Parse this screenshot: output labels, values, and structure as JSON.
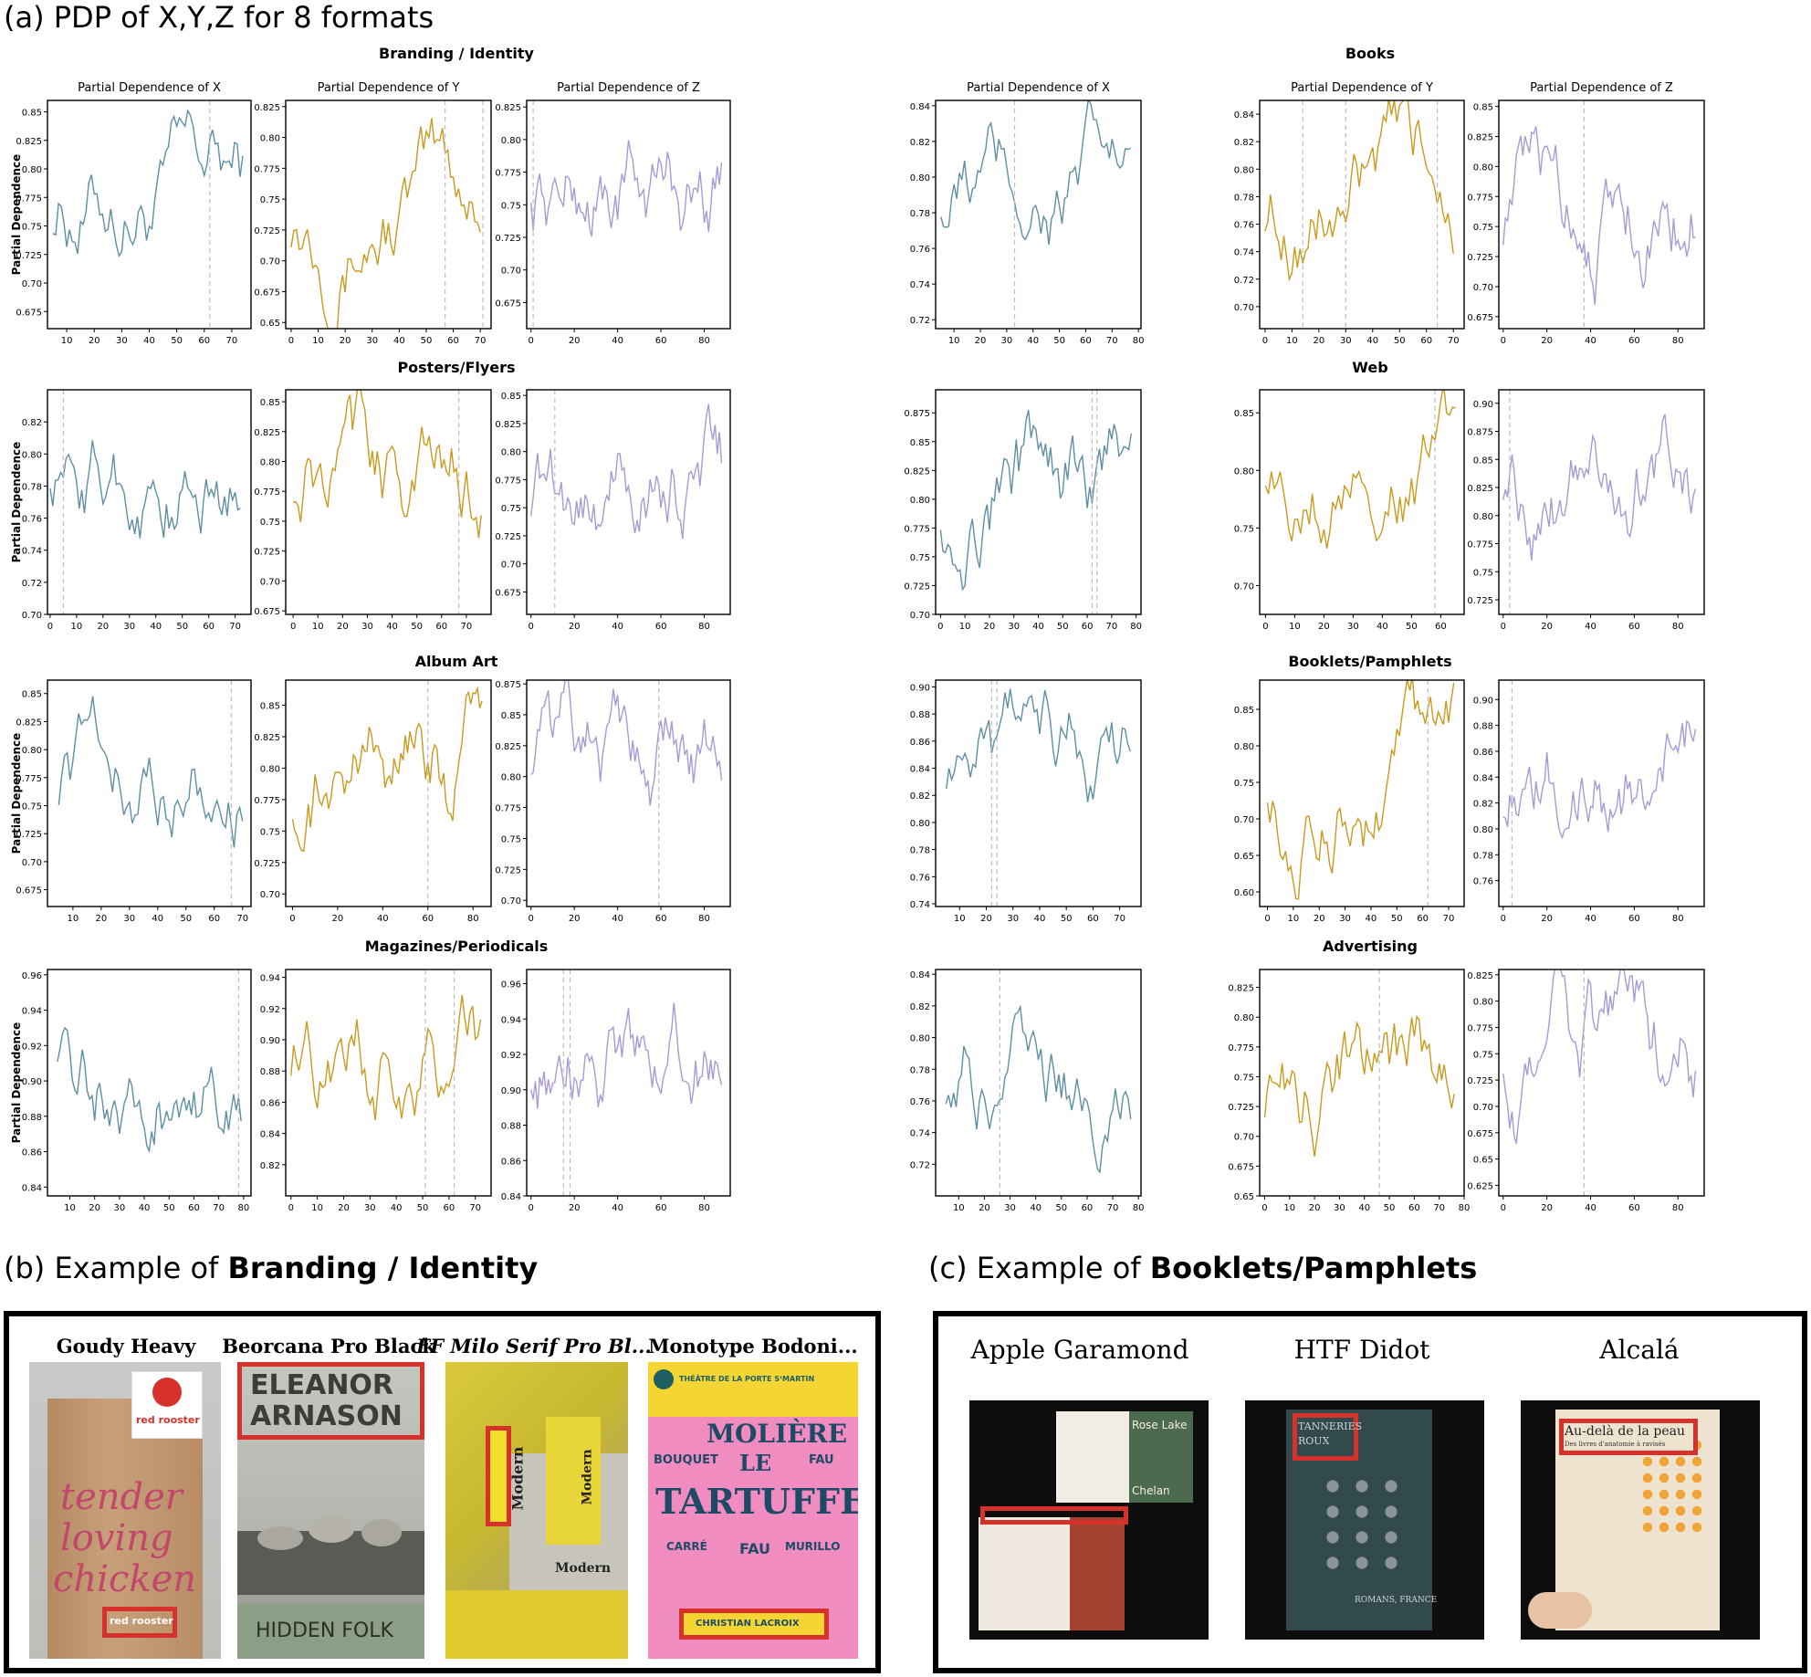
{
  "section_a": {
    "prefix": "(a) PDP of X,Y,Z for 8 formats"
  },
  "section_b": {
    "prefix": "(b) Example of ",
    "bold": "Branding / Identity"
  },
  "section_c": {
    "prefix": "(c) Example of ",
    "bold": "Booklets/Pamphlets"
  },
  "colors": {
    "x_series": "#5e8fa3",
    "y_series": "#c89a1e",
    "z_series": "#a79ad6",
    "highlight": "#d6312a"
  },
  "chart_data": [
    {
      "group": "Branding / Identity",
      "row": 0,
      "block": 0,
      "title": "Partial Dependence of X",
      "ylabel": "Partial Dependence",
      "type": "line",
      "series_color": "x",
      "xlim": [
        3,
        77
      ],
      "ylim": [
        0.66,
        0.86
      ],
      "xticks": [
        10,
        20,
        30,
        40,
        50,
        60,
        70
      ],
      "yticks": [
        0.675,
        0.7,
        0.725,
        0.75,
        0.775,
        0.8,
        0.825,
        0.85
      ],
      "vlines": [
        62
      ]
    },
    {
      "row": 0,
      "block": 0,
      "title": "Partial Dependence of Y",
      "type": "line",
      "series_color": "y",
      "xlim": [
        -2,
        74
      ],
      "ylim": [
        0.645,
        0.83
      ],
      "xticks": [
        0,
        10,
        20,
        30,
        40,
        50,
        60,
        70
      ],
      "yticks": [
        0.65,
        0.675,
        0.7,
        0.725,
        0.75,
        0.775,
        0.8,
        0.825
      ],
      "vlines": [
        57,
        71
      ]
    },
    {
      "row": 0,
      "block": 0,
      "title": "Partial Dependence of Z",
      "type": "line",
      "series_color": "z",
      "xlim": [
        -2,
        92
      ],
      "ylim": [
        0.655,
        0.83
      ],
      "xticks": [
        0,
        20,
        40,
        60,
        80
      ],
      "yticks": [
        0.675,
        0.7,
        0.725,
        0.75,
        0.775,
        0.8,
        0.825
      ],
      "vlines": [
        1
      ]
    },
    {
      "group": "Books",
      "row": 0,
      "block": 1,
      "title": "Partial Dependence of X",
      "type": "line",
      "series_color": "x",
      "xlim": [
        3,
        81
      ],
      "ylim": [
        0.715,
        0.843
      ],
      "xticks": [
        10,
        20,
        30,
        40,
        50,
        60,
        70,
        80
      ],
      "yticks": [
        0.72,
        0.74,
        0.76,
        0.78,
        0.8,
        0.82,
        0.84
      ],
      "vlines": [
        33
      ]
    },
    {
      "row": 0,
      "block": 1,
      "title": "Partial Dependence of Y",
      "type": "line",
      "series_color": "y",
      "xlim": [
        -2,
        74
      ],
      "ylim": [
        0.684,
        0.85
      ],
      "xticks": [
        0,
        10,
        20,
        30,
        40,
        50,
        60,
        70
      ],
      "yticks": [
        0.7,
        0.72,
        0.74,
        0.76,
        0.78,
        0.8,
        0.82,
        0.84
      ],
      "vlines": [
        14,
        30,
        64
      ]
    },
    {
      "row": 0,
      "block": 1,
      "title": "Partial Dependence of Z",
      "type": "line",
      "series_color": "z",
      "xlim": [
        -2,
        92
      ],
      "ylim": [
        0.665,
        0.855
      ],
      "xticks": [
        0,
        20,
        40,
        60,
        80
      ],
      "yticks": [
        0.675,
        0.7,
        0.725,
        0.75,
        0.775,
        0.8,
        0.825,
        0.85
      ],
      "vlines": [
        37
      ]
    },
    {
      "group": "Posters/Flyers",
      "row": 1,
      "block": 0,
      "ylabel": "Partial Dependence",
      "type": "line",
      "series_color": "x",
      "xlim": [
        -1,
        76
      ],
      "ylim": [
        0.7,
        0.84
      ],
      "xticks": [
        0,
        10,
        20,
        30,
        40,
        50,
        60,
        70
      ],
      "yticks": [
        0.7,
        0.72,
        0.74,
        0.76,
        0.78,
        0.8,
        0.82
      ],
      "vlines": [
        5
      ]
    },
    {
      "row": 1,
      "block": 0,
      "type": "line",
      "series_color": "y",
      "xlim": [
        -3,
        80
      ],
      "ylim": [
        0.672,
        0.86
      ],
      "xticks": [
        0,
        10,
        20,
        30,
        40,
        50,
        60,
        70
      ],
      "yticks": [
        0.675,
        0.7,
        0.725,
        0.75,
        0.775,
        0.8,
        0.825,
        0.85
      ],
      "vlines": [
        67
      ]
    },
    {
      "row": 1,
      "block": 0,
      "type": "line",
      "series_color": "z",
      "xlim": [
        -2,
        92
      ],
      "ylim": [
        0.655,
        0.855
      ],
      "xticks": [
        0,
        20,
        40,
        60,
        80
      ],
      "yticks": [
        0.675,
        0.7,
        0.725,
        0.75,
        0.775,
        0.8,
        0.825,
        0.85
      ],
      "vlines": [
        11
      ]
    },
    {
      "group": "Web",
      "row": 1,
      "block": 1,
      "type": "line",
      "series_color": "x",
      "xlim": [
        -2,
        82
      ],
      "ylim": [
        0.7,
        0.895
      ],
      "xticks": [
        0,
        10,
        20,
        30,
        40,
        50,
        60,
        70,
        80
      ],
      "yticks": [
        0.7,
        0.725,
        0.75,
        0.775,
        0.8,
        0.825,
        0.85,
        0.875
      ],
      "vlines": [
        62,
        64
      ]
    },
    {
      "row": 1,
      "block": 1,
      "type": "line",
      "series_color": "y",
      "xlim": [
        -2,
        68
      ],
      "ylim": [
        0.675,
        0.87
      ],
      "xticks": [
        0,
        10,
        20,
        30,
        40,
        50,
        60
      ],
      "yticks": [
        0.7,
        0.75,
        0.8,
        0.85
      ],
      "vlines": [
        58
      ]
    },
    {
      "row": 1,
      "block": 1,
      "type": "line",
      "series_color": "z",
      "xlim": [
        -2,
        92
      ],
      "ylim": [
        0.712,
        0.912
      ],
      "xticks": [
        0,
        20,
        40,
        60,
        80
      ],
      "yticks": [
        0.725,
        0.75,
        0.775,
        0.8,
        0.825,
        0.85,
        0.875,
        0.9
      ],
      "vlines": [
        3
      ]
    },
    {
      "group": "Album Art",
      "row": 2,
      "block": 0,
      "ylabel": "Partial Dependence",
      "type": "line",
      "series_color": "x",
      "xlim": [
        1,
        73
      ],
      "ylim": [
        0.66,
        0.862
      ],
      "xticks": [
        10,
        20,
        30,
        40,
        50,
        60,
        70
      ],
      "yticks": [
        0.675,
        0.7,
        0.725,
        0.75,
        0.775,
        0.8,
        0.825,
        0.85
      ],
      "vlines": [
        66
      ]
    },
    {
      "row": 2,
      "block": 0,
      "type": "line",
      "series_color": "y",
      "xlim": [
        -3,
        88
      ],
      "ylim": [
        0.69,
        0.87
      ],
      "xticks": [
        0,
        20,
        40,
        60,
        80
      ],
      "yticks": [
        0.7,
        0.725,
        0.75,
        0.775,
        0.8,
        0.825,
        0.85
      ],
      "vlines": [
        60
      ]
    },
    {
      "row": 2,
      "block": 0,
      "type": "line",
      "series_color": "z",
      "xlim": [
        -2,
        92
      ],
      "ylim": [
        0.695,
        0.878
      ],
      "xticks": [
        0,
        20,
        40,
        60,
        80
      ],
      "yticks": [
        0.7,
        0.725,
        0.75,
        0.775,
        0.8,
        0.825,
        0.85,
        0.875
      ],
      "vlines": [
        59
      ]
    },
    {
      "group": "Booklets/Pamphlets",
      "row": 2,
      "block": 1,
      "type": "line",
      "series_color": "x",
      "xlim": [
        1,
        78
      ],
      "ylim": [
        0.738,
        0.905
      ],
      "xticks": [
        10,
        20,
        30,
        40,
        50,
        60,
        70
      ],
      "yticks": [
        0.74,
        0.76,
        0.78,
        0.8,
        0.82,
        0.84,
        0.86,
        0.88,
        0.9
      ],
      "vlines": [
        22,
        24
      ]
    },
    {
      "row": 2,
      "block": 1,
      "type": "line",
      "series_color": "y",
      "xlim": [
        -3,
        76
      ],
      "ylim": [
        0.58,
        0.89
      ],
      "xticks": [
        0,
        10,
        20,
        30,
        40,
        50,
        60,
        70
      ],
      "yticks": [
        0.6,
        0.65,
        0.7,
        0.75,
        0.8,
        0.85
      ],
      "vlines": [
        62
      ]
    },
    {
      "row": 2,
      "block": 1,
      "type": "line",
      "series_color": "z",
      "xlim": [
        -2,
        92
      ],
      "ylim": [
        0.74,
        0.915
      ],
      "xticks": [
        0,
        20,
        40,
        60,
        80
      ],
      "yticks": [
        0.76,
        0.78,
        0.8,
        0.82,
        0.84,
        0.86,
        0.88,
        0.9
      ],
      "vlines": [
        4
      ]
    },
    {
      "group": "Magazines/Periodicals",
      "row": 3,
      "block": 0,
      "ylabel": "Partial Dependence",
      "type": "line",
      "series_color": "x",
      "xlim": [
        1,
        83
      ],
      "ylim": [
        0.835,
        0.963
      ],
      "xticks": [
        10,
        20,
        30,
        40,
        50,
        60,
        70,
        80
      ],
      "yticks": [
        0.84,
        0.86,
        0.88,
        0.9,
        0.92,
        0.94,
        0.96
      ],
      "vlines": [
        78
      ]
    },
    {
      "row": 3,
      "block": 0,
      "type": "line",
      "series_color": "y",
      "xlim": [
        -2,
        76
      ],
      "ylim": [
        0.8,
        0.945
      ],
      "xticks": [
        0,
        10,
        20,
        30,
        40,
        50,
        60,
        70
      ],
      "yticks": [
        0.82,
        0.84,
        0.86,
        0.88,
        0.9,
        0.92,
        0.94
      ],
      "vlines": [
        51,
        62
      ]
    },
    {
      "row": 3,
      "block": 0,
      "type": "line",
      "series_color": "z",
      "xlim": [
        -2,
        92
      ],
      "ylim": [
        0.84,
        0.968
      ],
      "xticks": [
        0,
        20,
        40,
        60,
        80
      ],
      "yticks": [
        0.84,
        0.86,
        0.88,
        0.9,
        0.92,
        0.94,
        0.96
      ],
      "vlines": [
        15,
        18
      ]
    },
    {
      "group": "Advertising",
      "row": 3,
      "block": 1,
      "type": "line",
      "series_color": "x",
      "xlim": [
        1,
        81
      ],
      "ylim": [
        0.7,
        0.843
      ],
      "xticks": [
        10,
        20,
        30,
        40,
        50,
        60,
        70,
        80
      ],
      "yticks": [
        0.72,
        0.74,
        0.76,
        0.78,
        0.8,
        0.82,
        0.84
      ],
      "vlines": [
        26
      ]
    },
    {
      "row": 3,
      "block": 1,
      "type": "line",
      "series_color": "y",
      "xlim": [
        -2,
        80
      ],
      "ylim": [
        0.65,
        0.84
      ],
      "xticks": [
        0,
        10,
        20,
        30,
        40,
        50,
        60,
        70,
        80
      ],
      "yticks": [
        0.65,
        0.675,
        0.7,
        0.725,
        0.75,
        0.775,
        0.8,
        0.825
      ],
      "vlines": [
        46
      ]
    },
    {
      "row": 3,
      "block": 1,
      "type": "line",
      "series_color": "z",
      "xlim": [
        -2,
        92
      ],
      "ylim": [
        0.615,
        0.83
      ],
      "xticks": [
        0,
        20,
        40,
        60,
        80
      ],
      "yticks": [
        0.625,
        0.65,
        0.675,
        0.7,
        0.725,
        0.75,
        0.775,
        0.8,
        0.825
      ],
      "vlines": [
        37
      ]
    }
  ],
  "examples_b": [
    {
      "font": "Goudy Heavy",
      "style": "bold"
    },
    {
      "font": "Beorcana Pro Black",
      "style": "bold"
    },
    {
      "font": "FF Milo Serif Pro Bl...",
      "style": "bi"
    },
    {
      "font": "Monotype Bodoni...",
      "style": "bold"
    }
  ],
  "examples_c": [
    {
      "font": "Apple Garamond"
    },
    {
      "font": "HTF Didot"
    },
    {
      "font": "Alcalá"
    }
  ],
  "photo_text": {
    "red_rooster": "red rooster",
    "bag_line1": "tender",
    "bag_line2": "loving",
    "bag_line3": "chicken",
    "eleanor1": "ELEANOR",
    "eleanor2": "ARNASON",
    "hidden_folk": "HIDDEN FOLK",
    "modern": "Modern",
    "theatre": "THÉÂTRE DE LA PORTE SᵗMARTIN",
    "moliere": "MOLIÈRE",
    "le": "LE",
    "tartuffe": "TARTUFFE",
    "bouquet": "BOUQUET",
    "fau": "FAU",
    "carre": "CARRÉ",
    "murillo": "MURILLO",
    "lacroix": "CHRISTIAN LACROIX",
    "rose_lake": "Rose Lake",
    "chelan": "Chelan",
    "tanneries1": "TANNERIES",
    "tanneries2": "ROUX",
    "romans": "ROMANS, FRANCE",
    "peau_title": "Au-delà de la peau",
    "peau_sub": "Des livres d'anatomie à ravisés"
  }
}
